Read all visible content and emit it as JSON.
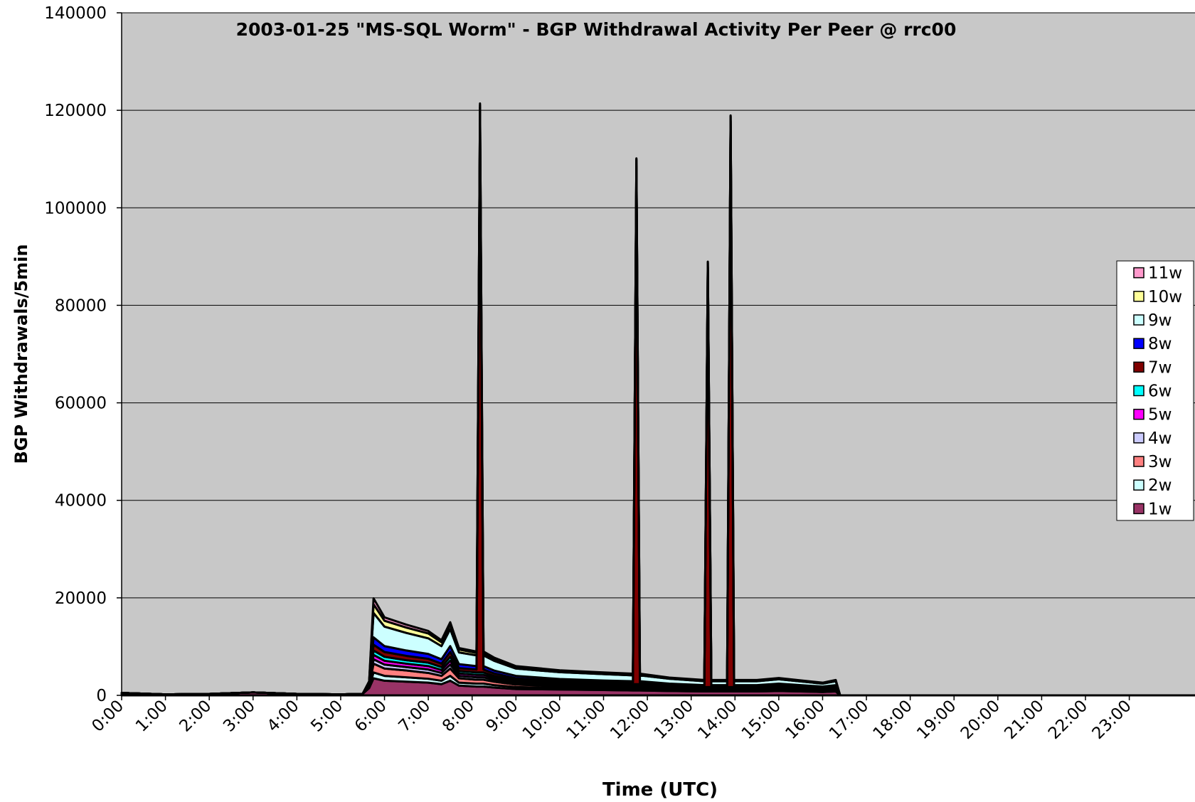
{
  "chart_data": {
    "type": "stacked_area",
    "title": "2003-01-25 \"MS-SQL Worm\" - BGP Withdrawal Activity Per Peer @ rrc00",
    "x_label": "Time (UTC)",
    "y_label": "BGP Withdrawals/5min",
    "x": [
      0,
      1,
      2,
      3,
      4,
      5,
      5.5,
      5.65,
      5.75,
      6,
      6.5,
      7,
      7.3,
      7.5,
      7.7,
      8.1,
      8.18,
      8.26,
      8.5,
      9,
      10,
      11,
      11.67,
      11.75,
      11.83,
      12.5,
      13.3,
      13.38,
      13.46,
      13.82,
      13.9,
      13.98,
      14.5,
      15,
      16,
      16.3,
      16.4,
      24.5
    ],
    "xlim": [
      0,
      24.5
    ],
    "xticks": [
      {
        "value": 0,
        "label": "0:00"
      },
      {
        "value": 1,
        "label": "1:00"
      },
      {
        "value": 2,
        "label": "2:00"
      },
      {
        "value": 3,
        "label": "3:00"
      },
      {
        "value": 4,
        "label": "4:00"
      },
      {
        "value": 5,
        "label": "5:00"
      },
      {
        "value": 6,
        "label": "6:00"
      },
      {
        "value": 7,
        "label": "7:00"
      },
      {
        "value": 8,
        "label": "8:00"
      },
      {
        "value": 9,
        "label": "9:00"
      },
      {
        "value": 10,
        "label": "10:00"
      },
      {
        "value": 11,
        "label": "11:00"
      },
      {
        "value": 12,
        "label": "12:00"
      },
      {
        "value": 13,
        "label": "13:00"
      },
      {
        "value": 14,
        "label": "14:00"
      },
      {
        "value": 15,
        "label": "15:00"
      },
      {
        "value": 16,
        "label": "16:00"
      },
      {
        "value": 17,
        "label": "17:00"
      },
      {
        "value": 18,
        "label": "18:00"
      },
      {
        "value": 19,
        "label": "19:00"
      },
      {
        "value": 20,
        "label": "20:00"
      },
      {
        "value": 21,
        "label": "21:00"
      },
      {
        "value": 22,
        "label": "22:00"
      },
      {
        "value": 23,
        "label": "23:00"
      }
    ],
    "ylim": [
      0,
      140000
    ],
    "yticks": [
      0,
      20000,
      40000,
      60000,
      80000,
      100000,
      120000,
      140000
    ],
    "grid": true,
    "legend": "right",
    "series": [
      {
        "name": "1w",
        "color": "#993366",
        "values": [
          500,
          200,
          300,
          600,
          300,
          200,
          300,
          1500,
          3500,
          3000,
          2800,
          2600,
          2300,
          3000,
          2000,
          1800,
          1800,
          1800,
          1600,
          1300,
          1200,
          1100,
          1000,
          1000,
          1000,
          900,
          800,
          800,
          800,
          800,
          800,
          800,
          800,
          900,
          700,
          800,
          0,
          0
        ]
      },
      {
        "name": "2w",
        "color": "#ccffff",
        "values": [
          0,
          0,
          0,
          0,
          0,
          0,
          0,
          200,
          1200,
          1000,
          900,
          800,
          700,
          1000,
          600,
          600,
          600,
          600,
          500,
          400,
          300,
          300,
          300,
          300,
          300,
          250,
          200,
          200,
          200,
          200,
          200,
          200,
          200,
          250,
          200,
          200,
          0,
          0
        ]
      },
      {
        "name": "3w",
        "color": "#ff8080",
        "values": [
          0,
          0,
          0,
          0,
          0,
          0,
          0,
          200,
          1800,
          1500,
          1400,
          1200,
          1000,
          1500,
          900,
          800,
          800,
          800,
          700,
          500,
          400,
          400,
          400,
          400,
          400,
          300,
          250,
          250,
          250,
          250,
          250,
          250,
          250,
          300,
          200,
          250,
          0,
          0
        ]
      },
      {
        "name": "4w",
        "color": "#ccccff",
        "values": [
          0,
          0,
          0,
          0,
          0,
          0,
          0,
          100,
          900,
          800,
          700,
          700,
          600,
          800,
          500,
          500,
          500,
          500,
          400,
          300,
          250,
          200,
          200,
          200,
          200,
          150,
          150,
          150,
          150,
          150,
          150,
          150,
          150,
          150,
          100,
          150,
          0,
          0
        ]
      },
      {
        "name": "5w",
        "color": "#ff00ff",
        "values": [
          0,
          0,
          0,
          0,
          0,
          0,
          0,
          100,
          900,
          800,
          700,
          700,
          600,
          800,
          500,
          500,
          500,
          500,
          400,
          300,
          250,
          200,
          200,
          200,
          200,
          150,
          150,
          150,
          150,
          150,
          150,
          150,
          150,
          150,
          100,
          150,
          0,
          0
        ]
      },
      {
        "name": "6w",
        "color": "#00ffff",
        "values": [
          0,
          0,
          0,
          0,
          0,
          0,
          0,
          100,
          900,
          800,
          700,
          700,
          600,
          800,
          500,
          500,
          500,
          500,
          400,
          300,
          250,
          200,
          200,
          200,
          200,
          150,
          150,
          150,
          150,
          150,
          150,
          150,
          150,
          150,
          100,
          150,
          0,
          0
        ]
      },
      {
        "name": "7w",
        "color": "#800000",
        "values": [
          0,
          0,
          0,
          0,
          0,
          0,
          0,
          100,
          1200,
          1000,
          900,
          800,
          700,
          1000,
          600,
          600,
          113000,
          600,
          500,
          400,
          300,
          300,
          300,
          106000,
          300,
          250,
          200,
          86000,
          200,
          200,
          116000,
          200,
          200,
          250,
          200,
          200,
          0,
          0
        ]
      },
      {
        "name": "8w",
        "color": "#0000ff",
        "values": [
          0,
          0,
          0,
          0,
          0,
          0,
          0,
          100,
          1500,
          1200,
          1100,
          1000,
          900,
          1200,
          800,
          700,
          700,
          700,
          600,
          500,
          400,
          350,
          300,
          300,
          300,
          250,
          200,
          200,
          200,
          200,
          200,
          200,
          200,
          250,
          200,
          200,
          0,
          0
        ]
      },
      {
        "name": "9w",
        "color": "#ccffff",
        "values": [
          0,
          0,
          0,
          0,
          0,
          0,
          0,
          300,
          5000,
          4000,
          3600,
          3200,
          2700,
          3500,
          2400,
          2200,
          2200,
          2200,
          2000,
          1500,
          1400,
          1300,
          1200,
          1200,
          1200,
          1000,
          800,
          800,
          800,
          800,
          800,
          800,
          800,
          900,
          600,
          800,
          0,
          0
        ]
      },
      {
        "name": "10w",
        "color": "#ffff99",
        "values": [
          0,
          0,
          0,
          0,
          0,
          0,
          0,
          100,
          1800,
          1200,
          1100,
          1000,
          800,
          900,
          600,
          500,
          500,
          500,
          400,
          300,
          250,
          200,
          200,
          200,
          200,
          150,
          150,
          150,
          150,
          150,
          150,
          150,
          150,
          150,
          100,
          150,
          0,
          0
        ]
      },
      {
        "name": "11w",
        "color": "#ff99cc",
        "values": [
          0,
          0,
          0,
          0,
          0,
          0,
          0,
          100,
          1200,
          700,
          600,
          500,
          400,
          500,
          300,
          300,
          300,
          300,
          250,
          200,
          150,
          150,
          150,
          150,
          150,
          100,
          100,
          100,
          100,
          100,
          100,
          100,
          100,
          100,
          100,
          100,
          0,
          0
        ]
      }
    ]
  }
}
